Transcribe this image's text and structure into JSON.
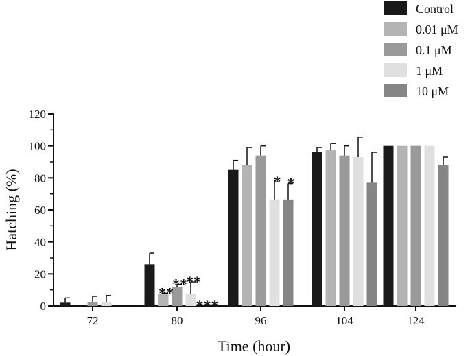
{
  "chart_data": {
    "type": "bar",
    "xlabel": "Time (hour)",
    "ylabel": "Hatching (%)",
    "ylim": [
      0,
      120
    ],
    "yticks": [
      0,
      20,
      40,
      60,
      80,
      100,
      120
    ],
    "grid": false,
    "legend_position": "top-right",
    "categories": [
      "72",
      "80",
      "96",
      "104",
      "124"
    ],
    "series": [
      {
        "name": "Control",
        "color": "#1a1a1a",
        "values": [
          2,
          26,
          85,
          96,
          100
        ],
        "errors": [
          3,
          7,
          6,
          3,
          0
        ]
      },
      {
        "name": "0.01 μM",
        "color": "#b4b4b4",
        "values": [
          0,
          7.5,
          88,
          97.5,
          100
        ],
        "errors": [
          0,
          0.5,
          11,
          4,
          0
        ]
      },
      {
        "name": "0.1 μM",
        "color": "#9a9a9a",
        "values": [
          2.5,
          12,
          94,
          94,
          100
        ],
        "errors": [
          3.5,
          1.5,
          6,
          6,
          0
        ]
      },
      {
        "name": "1 μM",
        "color": "#e0e0e0",
        "values": [
          2.5,
          7.5,
          66.5,
          93,
          100
        ],
        "errors": [
          4,
          7.5,
          11,
          12.5,
          0
        ]
      },
      {
        "name": "10 μM",
        "color": "#858585",
        "values": [
          0,
          0,
          66.5,
          77,
          88
        ],
        "errors": [
          0,
          0,
          10,
          19,
          5
        ]
      }
    ],
    "annotations": [
      {
        "category": "80",
        "series": "0.01 μM",
        "text": "**"
      },
      {
        "category": "80",
        "series": "0.1 μM",
        "text": "**"
      },
      {
        "category": "80",
        "series": "1 μM",
        "text": "**"
      },
      {
        "category": "80",
        "series": "10 μM",
        "text": "***"
      },
      {
        "category": "96",
        "series": "1 μM",
        "text": "*"
      },
      {
        "category": "96",
        "series": "10 μM",
        "text": "*"
      }
    ]
  }
}
